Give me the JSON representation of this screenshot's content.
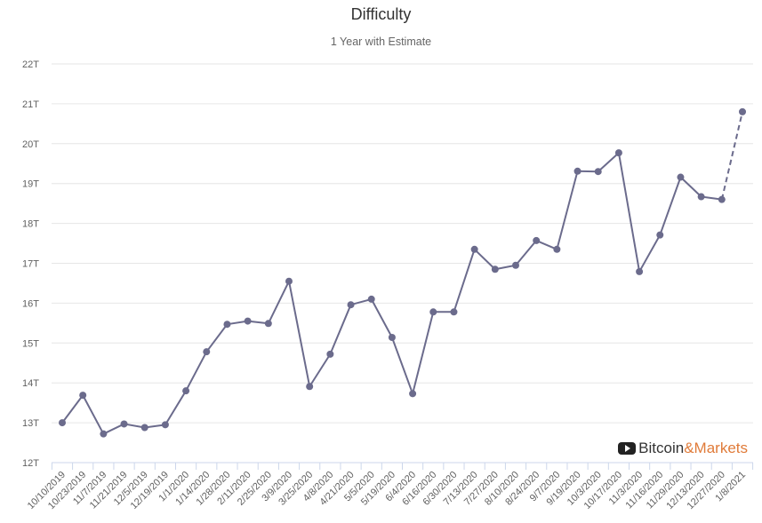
{
  "chart_data": {
    "type": "line",
    "title": "Difficulty",
    "subtitle": "1 Year with Estimate",
    "categories": [
      "10/10/2019",
      "10/23/2019",
      "11/7/2019",
      "11/21/2019",
      "12/5/2019",
      "12/19/2019",
      "1/1/2020",
      "1/14/2020",
      "1/28/2020",
      "2/11/2020",
      "2/25/2020",
      "3/9/2020",
      "3/25/2020",
      "4/8/2020",
      "4/21/2020",
      "5/5/2020",
      "5/19/2020",
      "6/4/2020",
      "6/16/2020",
      "6/30/2020",
      "7/13/2020",
      "7/27/2020",
      "8/10/2020",
      "8/24/2020",
      "9/7/2020",
      "9/19/2020",
      "10/3/2020",
      "10/17/2020",
      "11/3/2020",
      "11/16/2020",
      "11/29/2020",
      "12/13/2020",
      "12/27/2020",
      "1/8/2021"
    ],
    "values": [
      13.0,
      13.69,
      12.72,
      12.97,
      12.88,
      12.95,
      13.8,
      14.78,
      15.47,
      15.55,
      15.49,
      16.55,
      13.91,
      14.72,
      15.96,
      16.1,
      15.14,
      13.73,
      15.78,
      15.78,
      17.35,
      16.85,
      16.95,
      17.57,
      17.35,
      19.31,
      19.3,
      19.77,
      16.79,
      17.71,
      19.16,
      18.67,
      18.6,
      20.8
    ],
    "estimate_from_index": 32,
    "yticks": [
      "12T",
      "13T",
      "14T",
      "15T",
      "16T",
      "17T",
      "18T",
      "19T",
      "20T",
      "21T",
      "22T"
    ],
    "ylim": [
      12,
      22
    ],
    "grid": true,
    "colors": {
      "line": "#6b6b8c",
      "grid": "#e6e6e6",
      "axis": "#ccd6eb"
    }
  },
  "logo": {
    "part1": "Bitcoin",
    "part2": "&Markets"
  }
}
